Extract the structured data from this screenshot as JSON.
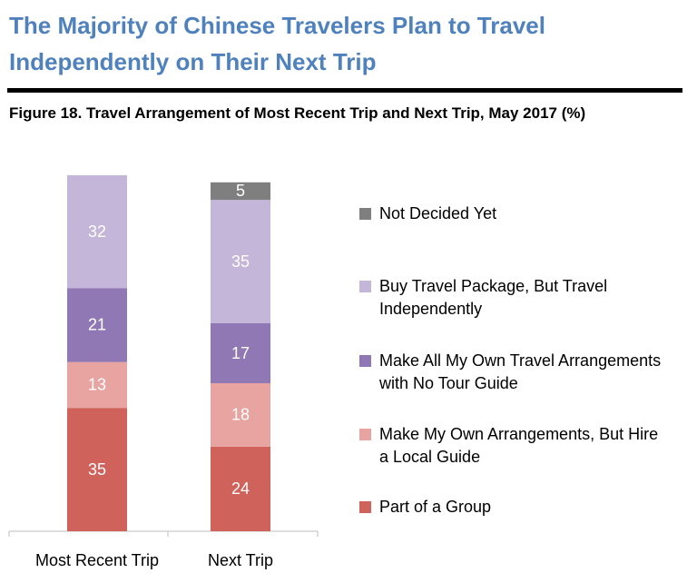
{
  "chart_data": {
    "type": "stacked_bar",
    "title": "The Majority of Chinese Travelers Plan to Travel Independently on Their Next Trip",
    "subtitle": "Figure 18. Travel Arrangement of Most Recent Trip and Next Trip, May 2017 (%)",
    "categories": [
      "Most Recent Trip",
      "Next Trip"
    ],
    "series": [
      {
        "name": "Part of a Group",
        "color": "#d0625c",
        "values": [
          35,
          24
        ]
      },
      {
        "name": "Make My Own Arrangements, But Hire a Local Guide",
        "color": "#e8a4a1",
        "values": [
          13,
          18
        ]
      },
      {
        "name": "Make All My Own Travel Arrangements with No Tour Guide",
        "color": "#8f78b4",
        "values": [
          21,
          17
        ]
      },
      {
        "name": "Buy Travel Package, But Travel Independently",
        "color": "#c4b6d9",
        "values": [
          32,
          35
        ]
      },
      {
        "name": "Not Decided Yet",
        "color": "#7f7f7f",
        "values": [
          null,
          5
        ]
      }
    ]
  }
}
